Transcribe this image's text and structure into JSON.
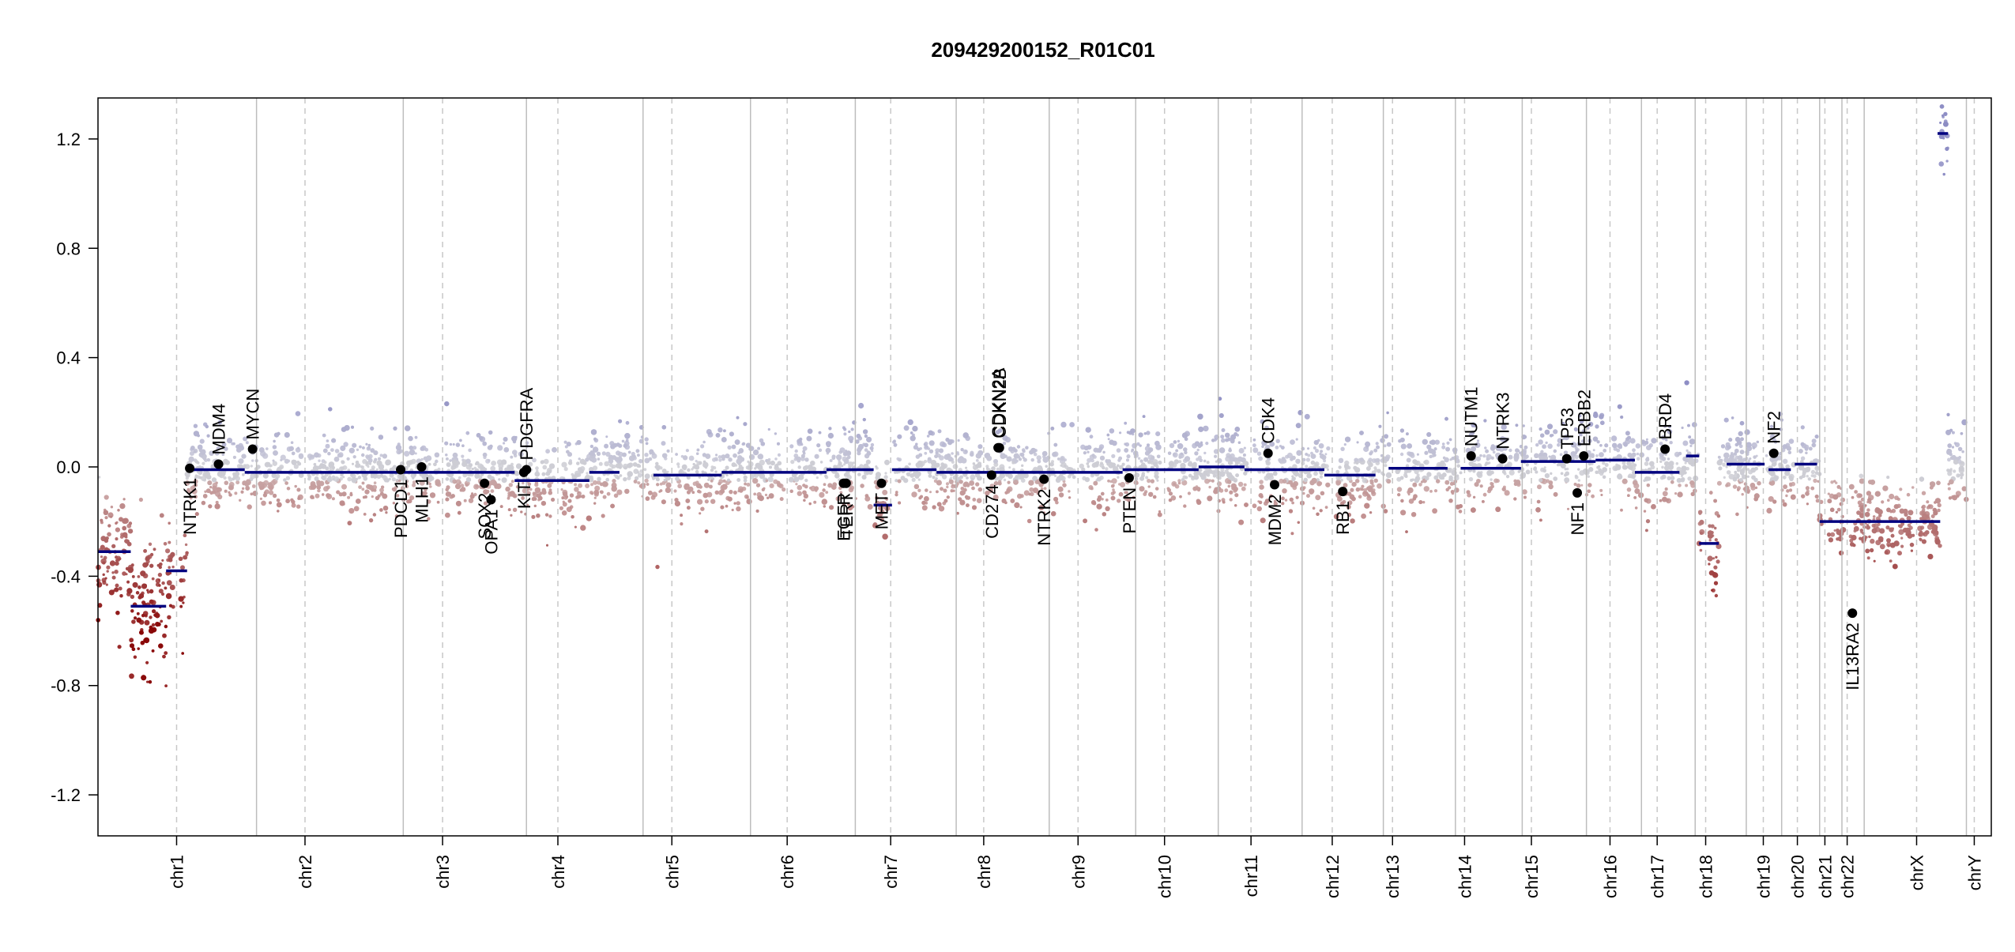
{
  "chart_data": {
    "type": "scatter",
    "title": "209429200152_R01C01",
    "xlabel": "",
    "ylabel": "",
    "ylim": [
      -1.35,
      1.35
    ],
    "yticks": [
      -1.2,
      -0.8,
      -0.4,
      0.0,
      0.4,
      0.8,
      1.2
    ],
    "ytick_labels": [
      "-1.2",
      "-0.8",
      "-0.4",
      "0.0",
      "0.4",
      "0.8",
      "1.2"
    ],
    "grid": false,
    "colors": {
      "gain": "#b7b7d0",
      "loss": "#8b0a0a",
      "neutral": "#c9c9c9",
      "segment": "#00007f",
      "gene_point": "#000000"
    },
    "chromosomes": [
      {
        "name": "chr1",
        "start": 0.0,
        "end": 12.1,
        "centromere": 6.0
      },
      {
        "name": "chr2",
        "start": 12.1,
        "end": 23.3,
        "centromere": 15.8
      },
      {
        "name": "chr3",
        "start": 23.3,
        "end": 32.7,
        "centromere": 26.3
      },
      {
        "name": "chr4",
        "start": 32.7,
        "end": 41.6,
        "centromere": 35.1
      },
      {
        "name": "chr5",
        "start": 41.6,
        "end": 49.8,
        "centromere": 43.8
      },
      {
        "name": "chr6",
        "start": 49.8,
        "end": 57.8,
        "centromere": 52.6
      },
      {
        "name": "chr7",
        "start": 57.8,
        "end": 65.5,
        "centromere": 60.5
      },
      {
        "name": "chr8",
        "start": 65.5,
        "end": 72.6,
        "centromere": 67.6
      },
      {
        "name": "chr9",
        "start": 72.6,
        "end": 79.2,
        "centromere": 74.8
      },
      {
        "name": "chr10",
        "start": 79.2,
        "end": 85.5,
        "centromere": 81.4
      },
      {
        "name": "chr11",
        "start": 85.5,
        "end": 91.9,
        "centromere": 88.0
      },
      {
        "name": "chr12",
        "start": 91.9,
        "end": 98.1,
        "centromere": 94.2
      },
      {
        "name": "chr13",
        "start": 98.1,
        "end": 103.6,
        "centromere": 98.8
      },
      {
        "name": "chr14",
        "start": 103.6,
        "end": 108.7,
        "centromere": 104.3
      },
      {
        "name": "chr15",
        "start": 108.7,
        "end": 113.6,
        "centromere": 109.4
      },
      {
        "name": "chr16",
        "start": 113.6,
        "end": 117.8,
        "centromere": 115.4
      },
      {
        "name": "chr17",
        "start": 117.8,
        "end": 121.9,
        "centromere": 119.0
      },
      {
        "name": "chr18",
        "start": 121.9,
        "end": 125.8,
        "centromere": 122.7
      },
      {
        "name": "chr19",
        "start": 125.8,
        "end": 128.5,
        "centromere": 127.1
      },
      {
        "name": "chr20",
        "start": 128.5,
        "end": 131.4,
        "centromere": 129.7
      },
      {
        "name": "chr21",
        "start": 131.4,
        "end": 133.1,
        "centromere": 131.8
      },
      {
        "name": "chr22",
        "start": 133.1,
        "end": 134.8,
        "centromere": 133.5
      },
      {
        "name": "chrX",
        "start": 134.8,
        "end": 142.6,
        "centromere": 138.8
      },
      {
        "name": "chrY",
        "start": 142.6,
        "end": 144.5,
        "centromere": 143.2
      }
    ],
    "xlim": [
      0.0,
      144.5
    ],
    "segments": [
      {
        "x0": 0.0,
        "x1": 2.5,
        "y": -0.31
      },
      {
        "x0": 2.5,
        "x1": 5.2,
        "y": -0.51
      },
      {
        "x0": 5.2,
        "x1": 6.8,
        "y": -0.38
      },
      {
        "x0": 6.8,
        "x1": 11.2,
        "y": -0.01
      },
      {
        "x0": 11.2,
        "x1": 31.8,
        "y": -0.02
      },
      {
        "x0": 31.8,
        "x1": 37.5,
        "y": -0.05
      },
      {
        "x0": 37.5,
        "x1": 39.8,
        "y": -0.02
      },
      {
        "x0": 42.4,
        "x1": 47.6,
        "y": -0.03
      },
      {
        "x0": 47.6,
        "x1": 55.6,
        "y": -0.02
      },
      {
        "x0": 55.6,
        "x1": 59.2,
        "y": -0.01
      },
      {
        "x0": 59.2,
        "x1": 60.6,
        "y": -0.14
      },
      {
        "x0": 60.6,
        "x1": 64.0,
        "y": -0.01
      },
      {
        "x0": 64.0,
        "x1": 78.2,
        "y": -0.02
      },
      {
        "x0": 78.2,
        "x1": 84.0,
        "y": -0.01
      },
      {
        "x0": 84.0,
        "x1": 87.5,
        "y": 0.0
      },
      {
        "x0": 87.5,
        "x1": 93.6,
        "y": -0.01
      },
      {
        "x0": 93.6,
        "x1": 97.5,
        "y": -0.03
      },
      {
        "x0": 98.5,
        "x1": 103.0,
        "y": -0.005
      },
      {
        "x0": 104.0,
        "x1": 108.6,
        "y": -0.005
      },
      {
        "x0": 108.6,
        "x1": 114.3,
        "y": 0.02
      },
      {
        "x0": 114.3,
        "x1": 117.3,
        "y": 0.025
      },
      {
        "x0": 117.3,
        "x1": 120.7,
        "y": -0.02
      },
      {
        "x0": 121.2,
        "x1": 122.2,
        "y": 0.04
      },
      {
        "x0": 122.2,
        "x1": 123.7,
        "y": -0.28
      },
      {
        "x0": 124.3,
        "x1": 127.2,
        "y": 0.01
      },
      {
        "x0": 127.5,
        "x1": 129.2,
        "y": -0.01
      },
      {
        "x0": 129.5,
        "x1": 131.2,
        "y": 0.01
      },
      {
        "x0": 131.4,
        "x1": 140.6,
        "y": -0.2
      },
      {
        "x0": 140.4,
        "x1": 141.2,
        "y": 1.22
      }
    ],
    "genes": [
      {
        "name": "NTRK1",
        "x": 7.0,
        "y": -0.005,
        "label_side": "below"
      },
      {
        "name": "MDM4",
        "x": 9.2,
        "y": 0.01,
        "label_side": "above"
      },
      {
        "name": "MYCN",
        "x": 11.8,
        "y": 0.065,
        "label_side": "above"
      },
      {
        "name": "PDCD1",
        "x": 23.1,
        "y": -0.01,
        "label_side": "below"
      },
      {
        "name": "MLH1",
        "x": 24.7,
        "y": 0.0,
        "label_side": "below"
      },
      {
        "name": "SOX2",
        "x": 29.5,
        "y": -0.06,
        "label_side": "below"
      },
      {
        "name": "OPA1",
        "x": 30.0,
        "y": -0.12,
        "label_side": "below"
      },
      {
        "name": "KIT",
        "x": 32.5,
        "y": -0.02,
        "label_side": "below"
      },
      {
        "name": "PDGFRA",
        "x": 32.7,
        "y": -0.01,
        "label_side": "above"
      },
      {
        "name": "EGFR",
        "x": 56.9,
        "y": -0.06,
        "label_side": "below"
      },
      {
        "name": "TERT",
        "x": 57.1,
        "y": -0.06,
        "label_side": "below"
      },
      {
        "name": "MET",
        "x": 59.8,
        "y": -0.06,
        "label_side": "below"
      },
      {
        "name": "CD274",
        "x": 68.2,
        "y": -0.03,
        "label_side": "below"
      },
      {
        "name": "CDKN2A",
        "x": 68.7,
        "y": 0.07,
        "label_side": "above"
      },
      {
        "name": "CDKN2B",
        "x": 68.8,
        "y": 0.07,
        "label_side": "above"
      },
      {
        "name": "NTRK2",
        "x": 72.2,
        "y": -0.045,
        "label_side": "below"
      },
      {
        "name": "PTEN",
        "x": 78.7,
        "y": -0.04,
        "label_side": "below"
      },
      {
        "name": "CDK4",
        "x": 89.3,
        "y": 0.05,
        "label_side": "above"
      },
      {
        "name": "MDM2",
        "x": 89.8,
        "y": -0.065,
        "label_side": "below"
      },
      {
        "name": "RB1",
        "x": 95.0,
        "y": -0.09,
        "label_side": "below"
      },
      {
        "name": "NUTM1",
        "x": 104.8,
        "y": 0.04,
        "label_side": "above"
      },
      {
        "name": "NTRK3",
        "x": 107.2,
        "y": 0.03,
        "label_side": "above"
      },
      {
        "name": "TP53",
        "x": 112.1,
        "y": 0.03,
        "label_side": "above"
      },
      {
        "name": "NF1",
        "x": 112.9,
        "y": -0.095,
        "label_side": "below"
      },
      {
        "name": "ERBB2",
        "x": 113.4,
        "y": 0.04,
        "label_side": "above"
      },
      {
        "name": "BRD4",
        "x": 119.6,
        "y": 0.065,
        "label_side": "above"
      },
      {
        "name": "NF2",
        "x": 127.9,
        "y": 0.05,
        "label_side": "above"
      },
      {
        "name": "IL13RA2",
        "x": 133.9,
        "y": -0.535,
        "label_side": "below"
      }
    ]
  }
}
